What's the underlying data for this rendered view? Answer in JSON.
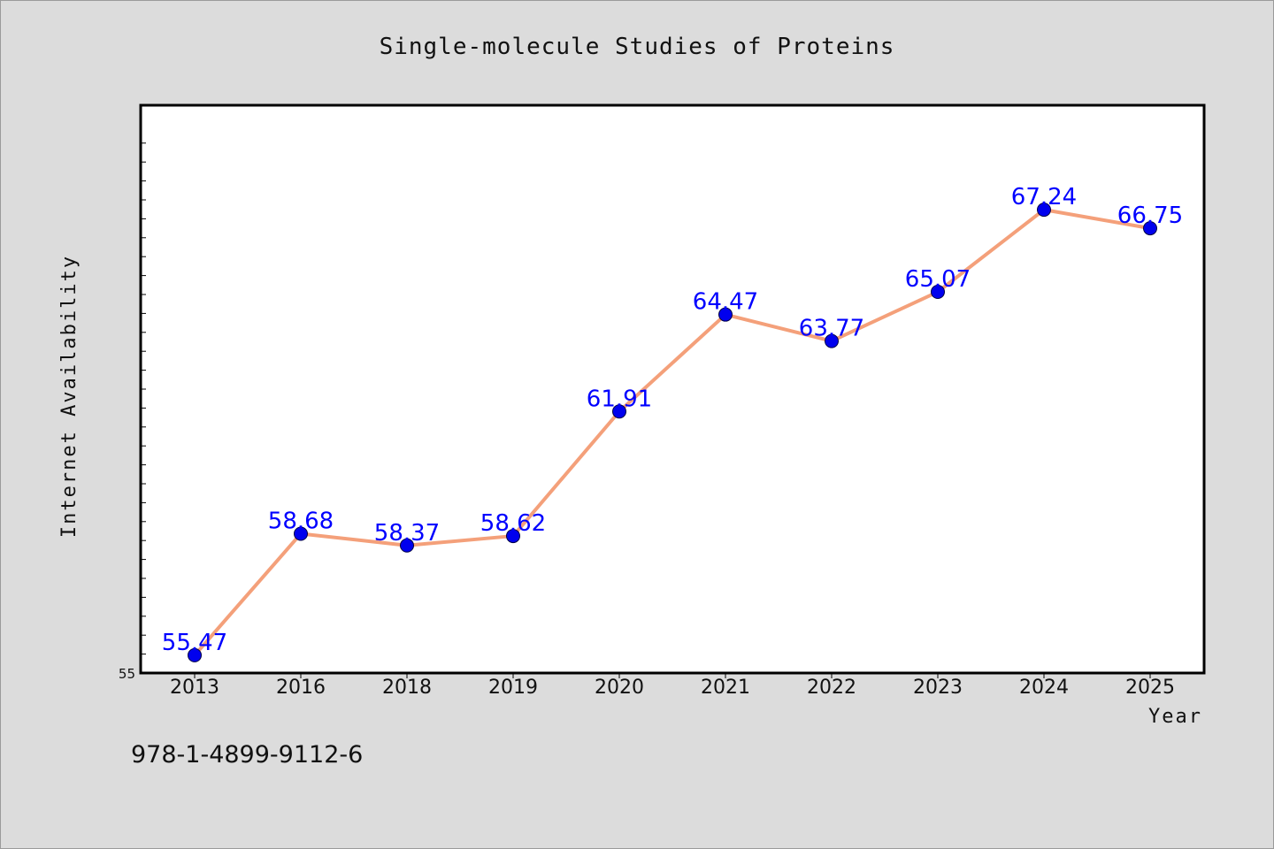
{
  "chart_data": {
    "type": "line",
    "title": "Single-molecule Studies of Proteins",
    "xlabel": "Year",
    "ylabel": "Internet Availability",
    "categories": [
      "2013",
      "2016",
      "2018",
      "2019",
      "2020",
      "2021",
      "2022",
      "2023",
      "2024",
      "2025"
    ],
    "series": [
      {
        "values": [
          55.47,
          58.68,
          58.37,
          58.62,
          61.91,
          64.47,
          63.77,
          65.07,
          67.24,
          66.75
        ],
        "labels": [
          "55.47",
          "58.68",
          "58.37",
          "58.62",
          "61.91",
          "64.47",
          "63.77",
          "65.07",
          "67.24",
          "66.75"
        ],
        "line_color": "#f4a07a",
        "marker_color": "#0000ee"
      }
    ],
    "ylim": [
      55,
      70
    ],
    "y_tick_labels": [
      "55"
    ],
    "grid": false,
    "legend": "none"
  },
  "footer_text": "978-1-4899-9112-6",
  "colors": {
    "background": "#dcdcdc",
    "plot_background": "#ffffff",
    "line": "#f4a07a",
    "marker": "#0000ee",
    "data_label": "#0000ff"
  }
}
